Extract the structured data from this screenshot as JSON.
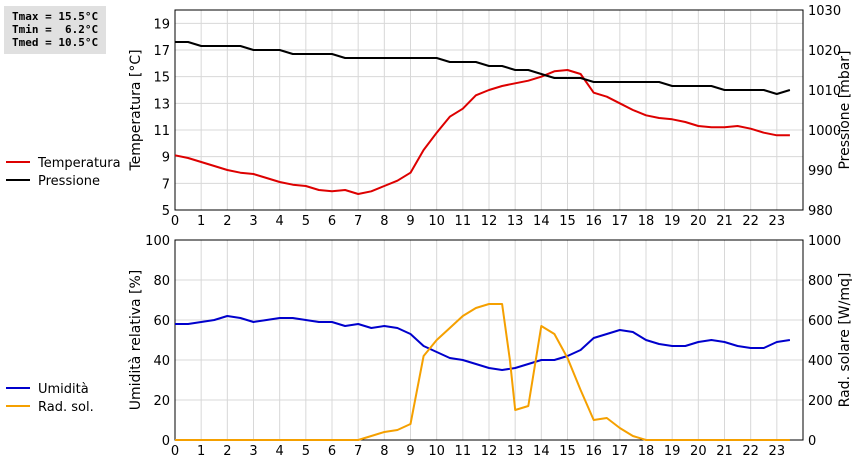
{
  "stats": {
    "tmax": "Tmax = 15.5°C",
    "tmin": "Tmin =  6.2°C",
    "tmed": "Tmed = 10.5°C"
  },
  "colors": {
    "temperature": "#dd0000",
    "pressure": "#000000",
    "humidity": "#0000cc",
    "solar": "#f5a000",
    "grid": "#d8d8d8"
  },
  "chart_data": [
    {
      "type": "line",
      "ylabel": "Temperatura [°C]",
      "y2label": "Pressione [mbar]",
      "xlim": [
        0,
        24
      ],
      "x_ticks": [
        "0",
        "1",
        "2",
        "3",
        "4",
        "5",
        "6",
        "7",
        "8",
        "9",
        "10",
        "11",
        "12",
        "13",
        "14",
        "15",
        "16",
        "17",
        "18",
        "19",
        "20",
        "21",
        "22",
        "23"
      ],
      "ylim": [
        5,
        20
      ],
      "y_ticks": [
        "5",
        "7",
        "9",
        "11",
        "13",
        "15",
        "17",
        "19"
      ],
      "y2lim": [
        980,
        1030
      ],
      "y2_ticks": [
        "980",
        "990",
        "1000",
        "1010",
        "1020",
        "1030"
      ],
      "grid": true,
      "legend": "left",
      "series": [
        {
          "name": "Temperatura",
          "axis": "left",
          "x": [
            0,
            0.5,
            1,
            1.5,
            2,
            2.5,
            3,
            3.5,
            4,
            4.5,
            5,
            5.5,
            6,
            6.5,
            7,
            7.5,
            8,
            8.5,
            9,
            9.5,
            10,
            10.5,
            11,
            11.5,
            12,
            12.5,
            13,
            13.5,
            14,
            14.5,
            15,
            15.5,
            16,
            16.5,
            17,
            17.5,
            18,
            18.5,
            19,
            19.5,
            20,
            20.5,
            21,
            21.5,
            22,
            22.5,
            23,
            23.5
          ],
          "values": [
            9.1,
            8.9,
            8.6,
            8.3,
            8.0,
            7.8,
            7.7,
            7.4,
            7.1,
            6.9,
            6.8,
            6.5,
            6.4,
            6.5,
            6.2,
            6.4,
            6.8,
            7.2,
            7.8,
            9.5,
            10.8,
            12.0,
            12.6,
            13.6,
            14.0,
            14.3,
            14.5,
            14.7,
            15.0,
            15.4,
            15.5,
            15.2,
            13.8,
            13.5,
            13.0,
            12.5,
            12.1,
            11.9,
            11.8,
            11.6,
            11.3,
            11.2,
            11.2,
            11.3,
            11.1,
            10.8,
            10.6,
            10.6
          ]
        },
        {
          "name": "Pressione",
          "axis": "right",
          "x": [
            0,
            0.5,
            1,
            1.5,
            2,
            2.5,
            3,
            3.5,
            4,
            4.5,
            5,
            5.5,
            6,
            6.5,
            7,
            7.5,
            8,
            8.5,
            9,
            9.5,
            10,
            10.5,
            11,
            11.5,
            12,
            12.5,
            13,
            13.5,
            14,
            14.5,
            15,
            15.5,
            16,
            16.5,
            17,
            17.5,
            18,
            18.5,
            19,
            19.5,
            20,
            20.5,
            21,
            21.5,
            22,
            22.5,
            23,
            23.5
          ],
          "values": [
            1022,
            1022,
            1021,
            1021,
            1021,
            1021,
            1020,
            1020,
            1020,
            1019,
            1019,
            1019,
            1019,
            1018,
            1018,
            1018,
            1018,
            1018,
            1018,
            1018,
            1018,
            1017,
            1017,
            1017,
            1016,
            1016,
            1015,
            1015,
            1014,
            1013,
            1013,
            1013,
            1012,
            1012,
            1012,
            1012,
            1012,
            1012,
            1011,
            1011,
            1011,
            1011,
            1010,
            1010,
            1010,
            1010,
            1009,
            1010
          ]
        }
      ]
    },
    {
      "type": "line",
      "ylabel": "Umidità relativa [%]",
      "y2label": "Rad. solare [W/mq]",
      "xlim": [
        0,
        24
      ],
      "x_ticks": [
        "0",
        "1",
        "2",
        "3",
        "4",
        "5",
        "6",
        "7",
        "8",
        "9",
        "10",
        "11",
        "12",
        "13",
        "14",
        "15",
        "16",
        "17",
        "18",
        "19",
        "20",
        "21",
        "22",
        "23"
      ],
      "ylim": [
        0,
        100
      ],
      "y_ticks": [
        "0",
        "20",
        "40",
        "60",
        "80",
        "100"
      ],
      "y2lim": [
        0,
        1000
      ],
      "y2_ticks": [
        "0",
        "200",
        "400",
        "600",
        "800",
        "1000"
      ],
      "grid": true,
      "legend": "left",
      "series": [
        {
          "name": "Umidità",
          "axis": "left",
          "x": [
            0,
            0.5,
            1,
            1.5,
            2,
            2.5,
            3,
            3.5,
            4,
            4.5,
            5,
            5.5,
            6,
            6.5,
            7,
            7.5,
            8,
            8.5,
            9,
            9.5,
            10,
            10.5,
            11,
            11.5,
            12,
            12.5,
            13,
            13.5,
            14,
            14.5,
            15,
            15.5,
            16,
            16.5,
            17,
            17.5,
            18,
            18.5,
            19,
            19.5,
            20,
            20.5,
            21,
            21.5,
            22,
            22.5,
            23,
            23.5
          ],
          "values": [
            58,
            58,
            59,
            60,
            62,
            61,
            59,
            60,
            61,
            61,
            60,
            59,
            59,
            57,
            58,
            56,
            57,
            56,
            53,
            47,
            44,
            41,
            40,
            38,
            36,
            35,
            36,
            38,
            40,
            40,
            42,
            45,
            51,
            53,
            55,
            54,
            50,
            48,
            47,
            47,
            49,
            50,
            49,
            47,
            46,
            46,
            49,
            50
          ]
        },
        {
          "name": "Rad. sol.",
          "axis": "right",
          "x": [
            0,
            1,
            2,
            3,
            4,
            5,
            6,
            7,
            7.5,
            8,
            8.5,
            9,
            9.5,
            10,
            10.5,
            11,
            11.5,
            12,
            12.5,
            12.8,
            13,
            13.5,
            14,
            14.5,
            15,
            15.5,
            16,
            16.5,
            17,
            17.5,
            18,
            18.5,
            19,
            20,
            21,
            22,
            23,
            23.5
          ],
          "values": [
            0,
            0,
            0,
            0,
            0,
            0,
            0,
            0,
            20,
            40,
            50,
            80,
            420,
            500,
            560,
            620,
            660,
            680,
            680,
            400,
            150,
            170,
            570,
            530,
            410,
            250,
            100,
            110,
            60,
            20,
            0,
            0,
            0,
            0,
            0,
            0,
            0,
            0
          ]
        }
      ]
    }
  ]
}
